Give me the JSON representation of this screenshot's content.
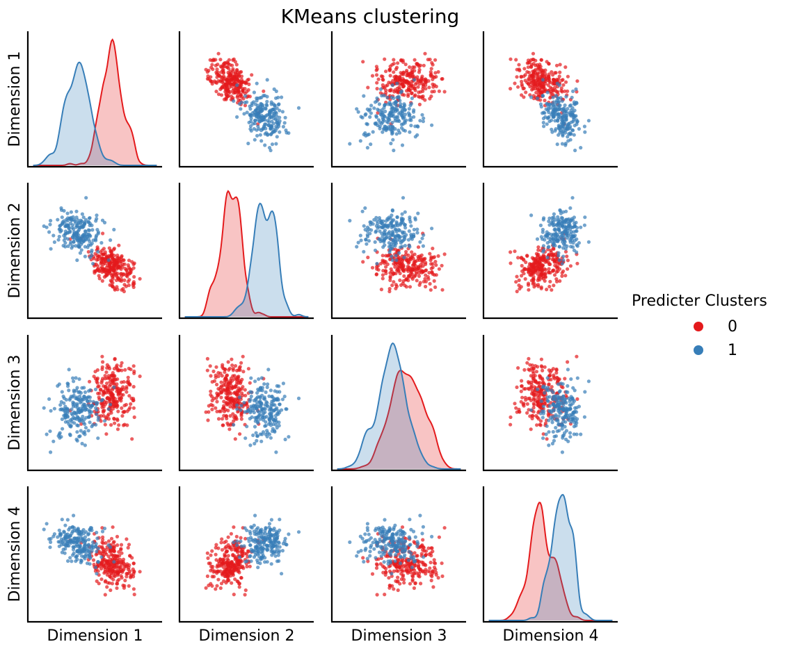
{
  "chart_data": {
    "type": "scatter",
    "title": "KMeans clustering",
    "variables": [
      "Dimension 1",
      "Dimension 2",
      "Dimension 3",
      "Dimension 4"
    ],
    "diagonal": "kde",
    "axis_range": [
      -3.2,
      3.2
    ],
    "legend": {
      "title": "Predicter Clusters",
      "placement": "center-right",
      "entries": [
        "0",
        "1"
      ]
    },
    "colors": [
      "#e41a1c",
      "#377eb8"
    ],
    "point_alpha": 0.7,
    "series": [
      {
        "name": "0",
        "n": 250,
        "mean": [
          0.9,
          -0.9,
          0.45,
          -0.5
        ],
        "sd": [
          0.55,
          0.55,
          0.8,
          0.6
        ],
        "cov": [
          [
            0.3,
            -0.1,
            0.05,
            -0.1
          ],
          [
            -0.1,
            0.3,
            0.0,
            0.05
          ],
          [
            0.05,
            0.0,
            0.64,
            0.0
          ],
          [
            -0.1,
            0.05,
            0.0,
            0.36
          ]
        ]
      },
      {
        "name": "1",
        "n": 200,
        "mean": [
          -0.9,
          0.95,
          -0.4,
          0.55
        ],
        "sd": [
          0.6,
          0.6,
          0.7,
          0.5
        ],
        "cov": [
          [
            0.36,
            -0.08,
            0.05,
            -0.1
          ],
          [
            -0.08,
            0.36,
            0.0,
            0.05
          ],
          [
            0.05,
            0.0,
            0.49,
            0.0
          ],
          [
            -0.1,
            0.05,
            0.0,
            0.25
          ]
        ]
      }
    ]
  }
}
